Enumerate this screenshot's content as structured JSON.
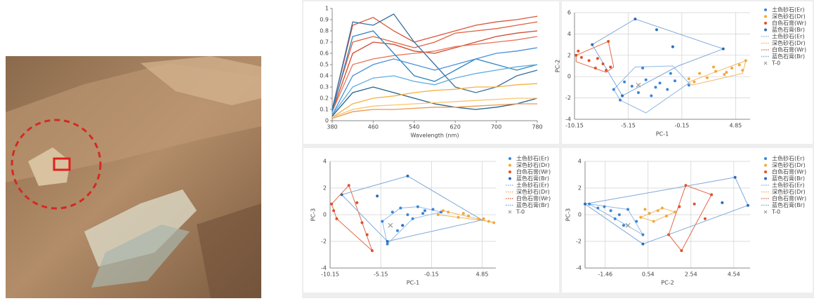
{
  "chart_data": [
    {
      "type": "line",
      "xlabel": "Wavelength (nm)",
      "x": [
        380,
        420,
        460,
        500,
        540,
        580,
        620,
        660,
        700,
        740,
        780
      ],
      "xlim": [
        380,
        780
      ],
      "xticks": [
        380,
        460,
        540,
        620,
        700,
        780
      ],
      "ylim": [
        0,
        1
      ],
      "yticks": [
        0,
        0.1,
        0.2,
        0.3,
        0.4,
        0.5,
        0.6,
        0.7,
        0.8,
        0.9,
        1
      ],
      "grid": false,
      "series": [
        {
          "color": "#d9553a",
          "values": [
            0.1,
            0.85,
            0.92,
            0.8,
            0.7,
            0.75,
            0.8,
            0.85,
            0.88,
            0.9,
            0.93
          ]
        },
        {
          "color": "#e0603f",
          "values": [
            0.1,
            0.7,
            0.75,
            0.7,
            0.65,
            0.7,
            0.78,
            0.8,
            0.82,
            0.85,
            0.88
          ]
        },
        {
          "color": "#cf4a2f",
          "values": [
            0.08,
            0.6,
            0.7,
            0.68,
            0.62,
            0.6,
            0.65,
            0.7,
            0.75,
            0.78,
            0.8
          ]
        },
        {
          "color": "#e8765a",
          "values": [
            0.08,
            0.5,
            0.55,
            0.58,
            0.6,
            0.62,
            0.66,
            0.68,
            0.7,
            0.72,
            0.75
          ]
        },
        {
          "color": "#3a6fa0",
          "values": [
            0.1,
            0.88,
            0.85,
            0.95,
            0.7,
            0.5,
            0.3,
            0.25,
            0.3,
            0.4,
            0.45
          ]
        },
        {
          "color": "#2e86c1",
          "values": [
            0.08,
            0.75,
            0.8,
            0.6,
            0.4,
            0.35,
            0.45,
            0.55,
            0.5,
            0.45,
            0.5
          ]
        },
        {
          "color": "#4a90d9",
          "values": [
            0.05,
            0.4,
            0.5,
            0.55,
            0.5,
            0.45,
            0.5,
            0.55,
            0.6,
            0.62,
            0.65
          ]
        },
        {
          "color": "#5dade2",
          "values": [
            0.05,
            0.3,
            0.38,
            0.4,
            0.35,
            0.32,
            0.38,
            0.42,
            0.45,
            0.48,
            0.5
          ]
        },
        {
          "color": "#1f618d",
          "values": [
            0.04,
            0.25,
            0.3,
            0.25,
            0.2,
            0.15,
            0.12,
            0.1,
            0.12,
            0.15,
            0.2
          ]
        },
        {
          "color": "#f5b041",
          "values": [
            0.03,
            0.15,
            0.2,
            0.22,
            0.25,
            0.27,
            0.28,
            0.3,
            0.3,
            0.32,
            0.33
          ]
        },
        {
          "color": "#f8c471",
          "values": [
            0.03,
            0.1,
            0.13,
            0.14,
            0.15,
            0.16,
            0.17,
            0.18,
            0.19,
            0.2,
            0.2
          ]
        },
        {
          "color": "#eb984e",
          "values": [
            0.02,
            0.08,
            0.1,
            0.1,
            0.11,
            0.12,
            0.12,
            0.13,
            0.14,
            0.15,
            0.15
          ]
        }
      ]
    },
    {
      "type": "scatter",
      "xlabel": "PC-1",
      "ylabel": "PC-2",
      "xlim": [
        -10.15,
        6.2
      ],
      "xticks": [
        -10.15,
        -5.15,
        -0.15,
        4.85
      ],
      "ylim": [
        -4,
        6
      ],
      "yticks": [
        -4,
        -2,
        0,
        2,
        4,
        6
      ],
      "grid": true,
      "series": [
        {
          "name": "土色砂石(Er)",
          "color": "#3b86d8",
          "marker": "dot",
          "x": [
            -6.5,
            -5.5,
            -4.8,
            -4.2,
            -3.5,
            -3,
            -2.2,
            -1.5,
            -0.8,
            0.5,
            -5.9,
            -3.8,
            -2.6,
            -1.2
          ],
          "y": [
            -1.2,
            -0.5,
            -0.9,
            -1.5,
            -0.3,
            -1.8,
            -0.6,
            -1.2,
            -0.4,
            -0.8,
            -2.2,
            0.8,
            -1,
            0.3
          ]
        },
        {
          "name": "深色砂石(Dr)",
          "color": "#f2a93b",
          "marker": "dot",
          "x": [
            0.5,
            1.5,
            2.2,
            3,
            3.8,
            4.5,
            5.2,
            5.8,
            1,
            2.8,
            4,
            5.5
          ],
          "y": [
            -0.2,
            0.3,
            -0.1,
            0.5,
            0.2,
            0.8,
            1.1,
            1.5,
            -0.5,
            0.9,
            0.4,
            0.6
          ]
        },
        {
          "name": "白色石膏(Wr)",
          "color": "#e0502a",
          "marker": "dot",
          "x": [
            -10,
            -9.5,
            -8.8,
            -8.2,
            -7.5,
            -7.2,
            -6.8,
            -7,
            -9.8,
            -8
          ],
          "y": [
            2,
            1.8,
            1.5,
            0.8,
            1.2,
            0.6,
            0.9,
            3.3,
            2.4,
            1.7
          ]
        },
        {
          "name": "蓝色石膏(Br)",
          "color": "#2b6cb8",
          "marker": "dot",
          "x": [
            -8.5,
            -4.5,
            -2.5,
            -1,
            3.7,
            -5.7
          ],
          "y": [
            3,
            5.4,
            4.4,
            2.8,
            2.6,
            -1.8
          ]
        },
        {
          "name": "T-0",
          "color": "#999999",
          "marker": "x",
          "x": [
            -4.2
          ],
          "y": [
            -0.8
          ]
        }
      ],
      "hulls": [
        {
          "name": "土色砂石(Er)",
          "color": "#8fb8e6",
          "x": [
            -6.5,
            -4.5,
            -1,
            0.5,
            -3.5,
            -5.9
          ],
          "y": [
            -1.2,
            0.9,
            1,
            -0.6,
            -3.4,
            -2.2
          ]
        },
        {
          "name": "深色砂石(Dr)",
          "color": "#f2b760",
          "x": [
            0.5,
            5.8,
            5.5,
            0.8
          ],
          "y": [
            -0.5,
            1.5,
            0.3,
            -0.8
          ]
        },
        {
          "name": "白色石膏(Wr)",
          "color": "#e06a4a",
          "x": [
            -10,
            -7,
            -6.5,
            -7.2,
            -10
          ],
          "y": [
            2,
            3.3,
            0.9,
            0.4,
            1.4
          ]
        },
        {
          "name": "蓝色石膏(Br)",
          "color": "#7fa8d8",
          "x": [
            -8.5,
            -4.5,
            3.7,
            -0.5,
            -5.7
          ],
          "y": [
            3,
            5.4,
            2.6,
            1,
            -1.8
          ]
        }
      ]
    },
    {
      "type": "scatter",
      "xlabel": "PC-1",
      "ylabel": "PC-3",
      "xlim": [
        -10.15,
        6.2
      ],
      "xticks": [
        -10.15,
        -5.15,
        -0.15,
        4.85
      ],
      "ylim": [
        -4,
        4
      ],
      "yticks": [
        -4,
        -2,
        0,
        2,
        4
      ],
      "grid": true,
      "series": [
        {
          "name": "土色砂石(Er)",
          "color": "#3b86d8",
          "marker": "dot",
          "x": [
            -5,
            -4,
            -3.2,
            -2.5,
            -1.5,
            -0.8,
            0,
            0.8,
            -3.5,
            -2,
            -4.5,
            -1
          ],
          "y": [
            -0.5,
            0.2,
            0.5,
            0,
            0.6,
            0.3,
            0.4,
            0.2,
            -1.2,
            -0.3,
            -2.2,
            0.1
          ]
        },
        {
          "name": "深色砂石(Dr)",
          "color": "#f2a93b",
          "marker": "dot",
          "x": [
            0.5,
            1.5,
            2.5,
            3.5,
            4.5,
            5.5,
            6,
            1,
            3,
            5
          ],
          "y": [
            0,
            0.2,
            -0.2,
            -0.1,
            -0.3,
            -0.5,
            -0.6,
            0.3,
            0.1,
            -0.3
          ]
        },
        {
          "name": "白色石膏(Wr)",
          "color": "#e0502a",
          "marker": "dot",
          "x": [
            -10,
            -9.5,
            -8.3,
            -7.5,
            -7,
            -6.5,
            -6,
            -9.8
          ],
          "y": [
            0.8,
            -0.3,
            2.2,
            0.9,
            -0.6,
            -1.5,
            -2.7,
            0.3
          ]
        },
        {
          "name": "蓝色石膏(Br)",
          "color": "#2b6cb8",
          "marker": "dot",
          "x": [
            -9,
            -5.5,
            -2.5,
            -3,
            -4.5
          ],
          "y": [
            1.5,
            1.4,
            2.9,
            -0.8,
            -2
          ]
        },
        {
          "name": "T-0",
          "color": "#999999",
          "marker": "x",
          "x": [
            -4.2
          ],
          "y": [
            -0.8
          ]
        }
      ],
      "hulls": [
        {
          "name": "土色砂石(Er)",
          "color": "#8fb8e6",
          "x": [
            -5,
            -3.2,
            -1.5,
            0.8,
            -2,
            -4.5
          ],
          "y": [
            -0.5,
            0.5,
            0.6,
            0.2,
            -0.3,
            -2.2
          ]
        },
        {
          "name": "深色砂石(Dr)",
          "color": "#f2b760",
          "x": [
            0.5,
            1,
            6,
            5.5
          ],
          "y": [
            0,
            0.3,
            -0.6,
            -0.5
          ]
        },
        {
          "name": "白色石膏(Wr)",
          "color": "#e06a4a",
          "x": [
            -10,
            -8.3,
            -6,
            -9.5
          ],
          "y": [
            0.8,
            2.2,
            -2.7,
            -0.3
          ]
        },
        {
          "name": "蓝色石膏(Br)",
          "color": "#7fa8d8",
          "x": [
            -9,
            -2.5,
            4.85,
            -4.5
          ],
          "y": [
            1.5,
            2.9,
            -0.4,
            -2
          ]
        }
      ]
    },
    {
      "type": "scatter",
      "xlabel": "PC-2",
      "ylabel": "PC-3",
      "xlim": [
        -2.4,
        5.3
      ],
      "xticks": [
        -1.46,
        0.54,
        2.54,
        4.54
      ],
      "ylim": [
        -4,
        4
      ],
      "yticks": [
        -4,
        -2,
        0,
        2,
        4
      ],
      "grid": true,
      "series": [
        {
          "name": "土色砂石(Er)",
          "color": "#3b86d8",
          "marker": "dot",
          "x": [
            -2.2,
            -1.8,
            -1.2,
            -0.8,
            -0.4,
            0,
            0.3,
            -1.5,
            -0.6,
            -1
          ],
          "y": [
            0.8,
            0.5,
            0.3,
            0,
            0.4,
            -0.5,
            -1.5,
            0.6,
            -0.8,
            -0.3
          ]
        },
        {
          "name": "深色砂石(Dr)",
          "color": "#f2a93b",
          "marker": "dot",
          "x": [
            0.2,
            0.6,
            1,
            1.4,
            1.8,
            0.8,
            1.2,
            0.4
          ],
          "y": [
            -0.2,
            0.1,
            0.3,
            -0.1,
            0.2,
            -0.5,
            0.5,
            0.4
          ]
        },
        {
          "name": "白色石膏(Wr)",
          "color": "#e0502a",
          "marker": "dot",
          "x": [
            2,
            2.3,
            2.7,
            3.2,
            1.5,
            3.5,
            2.1
          ],
          "y": [
            0.6,
            2.2,
            0.8,
            -0.3,
            -1.5,
            1.5,
            -2.7
          ]
        },
        {
          "name": "蓝色石膏(Br)",
          "color": "#2b6cb8",
          "marker": "dot",
          "x": [
            -2.4,
            4,
            4.6,
            5.2,
            0.3
          ],
          "y": [
            0.8,
            0.9,
            2.8,
            0.7,
            -2.2
          ]
        },
        {
          "name": "T-0",
          "color": "#999999",
          "marker": "x",
          "x": [
            -0.4
          ],
          "y": [
            -0.8
          ]
        }
      ],
      "hulls": [
        {
          "name": "土色砂石(Er)",
          "color": "#8fb8e6",
          "x": [
            -2.2,
            -0.4,
            0.3,
            -1
          ],
          "y": [
            0.8,
            0.4,
            -1.5,
            -0.3
          ]
        },
        {
          "name": "深色砂石(Dr)",
          "color": "#f2b760",
          "x": [
            0.2,
            1.2,
            1.8,
            0.8
          ],
          "y": [
            -0.2,
            0.5,
            0.2,
            -0.5
          ]
        },
        {
          "name": "白色石膏(Wr)",
          "color": "#e06a4a",
          "x": [
            1.5,
            2.3,
            3.5,
            2.1
          ],
          "y": [
            -1.5,
            2.2,
            1.5,
            -2.7
          ]
        },
        {
          "name": "蓝色石膏(Br)",
          "color": "#7fa8d8",
          "x": [
            -2.4,
            4.6,
            5.2,
            0.3
          ],
          "y": [
            0.8,
            2.8,
            0.7,
            -2.2
          ]
        }
      ]
    }
  ]
}
